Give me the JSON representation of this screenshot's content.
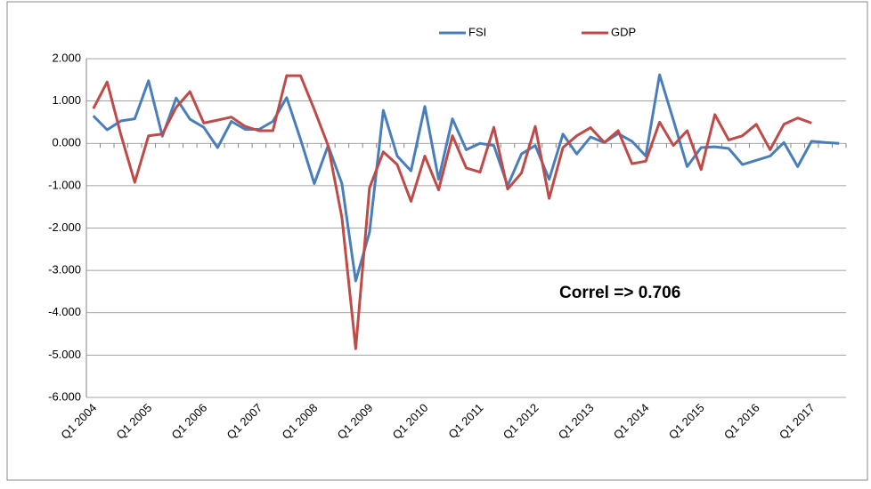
{
  "chart_data": {
    "type": "line",
    "categories": [
      "Q1 2004",
      null,
      null,
      null,
      "Q1 2005",
      null,
      null,
      null,
      "Q1 2006",
      null,
      null,
      null,
      "Q1 2007",
      null,
      null,
      null,
      "Q1 2008",
      null,
      null,
      null,
      "Q1 2009",
      null,
      null,
      null,
      "Q1 2010",
      null,
      null,
      null,
      "Q1 2011",
      null,
      null,
      null,
      "Q1 2012",
      null,
      null,
      null,
      "Q1 2013",
      null,
      null,
      null,
      "Q1 2014",
      null,
      null,
      null,
      "Q1 2015",
      null,
      null,
      null,
      "Q1 2016",
      null,
      null,
      null,
      "Q1 2017",
      null,
      null
    ],
    "series": [
      {
        "name": "FSI",
        "color": "#4a7ebb",
        "values": [
          0.65,
          0.32,
          0.53,
          0.58,
          1.48,
          0.17,
          1.07,
          0.57,
          0.38,
          -0.1,
          0.52,
          0.33,
          0.33,
          0.52,
          1.08,
          0.1,
          -0.95,
          -0.05,
          -0.95,
          -3.25,
          -2.1,
          0.78,
          -0.3,
          -0.65,
          0.87,
          -0.85,
          0.58,
          -0.15,
          0.0,
          -0.05,
          -1.0,
          -0.25,
          -0.05,
          -0.85,
          0.22,
          -0.25,
          0.15,
          0.02,
          0.23,
          0.05,
          -0.3,
          1.62,
          0.55,
          -0.55,
          -0.1,
          -0.08,
          -0.12,
          -0.5,
          -0.4,
          -0.3,
          0.02,
          -0.55,
          0.05,
          0.02,
          0.0
        ]
      },
      {
        "name": "GDP",
        "color": "#be4b48",
        "values": [
          0.82,
          1.45,
          0.2,
          -0.92,
          0.18,
          0.22,
          0.85,
          1.22,
          0.48,
          0.55,
          0.62,
          0.4,
          0.3,
          0.3,
          1.6,
          1.6,
          0.8,
          -0.05,
          -1.75,
          -4.85,
          -1.05,
          -0.2,
          -0.5,
          -1.37,
          -0.3,
          -1.1,
          0.18,
          -0.58,
          -0.68,
          0.38,
          -1.08,
          -0.7,
          0.4,
          -1.3,
          -0.1,
          0.18,
          0.37,
          0.02,
          0.3,
          -0.48,
          -0.42,
          0.5,
          -0.05,
          0.3,
          -0.62,
          0.68,
          0.08,
          0.18,
          0.45,
          -0.15,
          0.45,
          0.6,
          0.48,
          null,
          null
        ]
      }
    ],
    "ylim": [
      -6,
      2
    ],
    "yticks": [
      {
        "value": -6,
        "label": "-6.000"
      },
      {
        "value": -5,
        "label": "-5.000"
      },
      {
        "value": -4,
        "label": "-4.000"
      },
      {
        "value": -3,
        "label": "-3.000"
      },
      {
        "value": -2,
        "label": "-2.000"
      },
      {
        "value": -1,
        "label": "-1.000"
      },
      {
        "value": 0,
        "label": "0.000"
      },
      {
        "value": 1,
        "label": "1.000"
      },
      {
        "value": 2,
        "label": "2.000"
      }
    ],
    "grid": true,
    "legend": "top",
    "annotation": "Correl => 0.706"
  }
}
